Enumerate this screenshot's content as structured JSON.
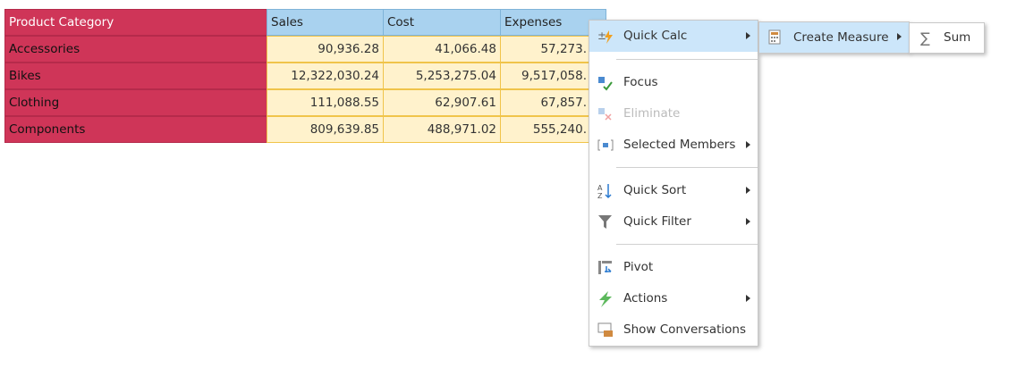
{
  "table": {
    "columns": [
      "Product Category",
      "Sales",
      "Cost",
      "Expenses"
    ],
    "rows": [
      [
        "Accessories",
        "90,936.28",
        "41,066.48",
        "57,273."
      ],
      [
        "Bikes",
        "12,322,030.24",
        "5,253,275.04",
        "9,517,058."
      ],
      [
        "Clothing",
        "111,088.55",
        "62,907.61",
        "67,857."
      ],
      [
        "Components",
        "809,639.85",
        "488,971.02",
        "555,240."
      ]
    ]
  },
  "menu": {
    "items": [
      "Quick Calc",
      "Focus",
      "Eliminate",
      "Selected Members",
      "Quick Sort",
      "Quick Filter",
      "Pivot",
      "Actions",
      "Show Conversations"
    ]
  },
  "submenu": {
    "items": [
      "Create Measure"
    ]
  },
  "submenu2": {
    "items": [
      "Sum"
    ]
  }
}
